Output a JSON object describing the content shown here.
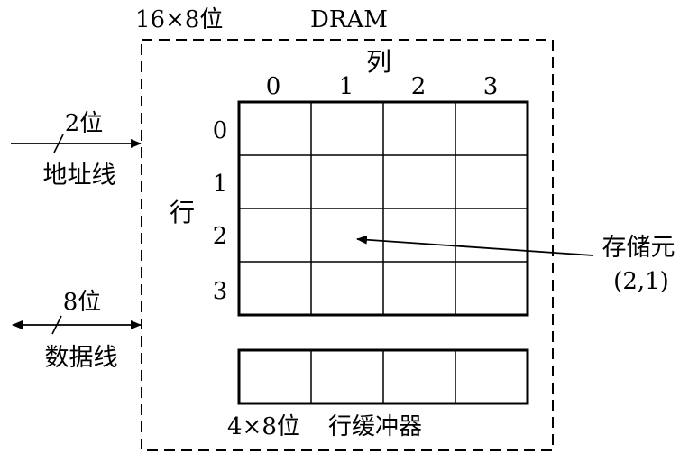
{
  "header": {
    "size_label": "16×8位",
    "chip_name": "DRAM"
  },
  "matrix": {
    "column_title": "列",
    "row_title": "行",
    "column_labels": [
      "0",
      "1",
      "2",
      "3"
    ],
    "row_labels": [
      "0",
      "1",
      "2",
      "3"
    ]
  },
  "address": {
    "width_label": "2位",
    "name": "地址线"
  },
  "data_bus": {
    "width_label": "8位",
    "name": "数据线"
  },
  "cell_callout": {
    "name": "存储元",
    "coord": "(2,1)"
  },
  "row_buffer": {
    "size_label": "4×8位",
    "name": "行缓冲器"
  }
}
